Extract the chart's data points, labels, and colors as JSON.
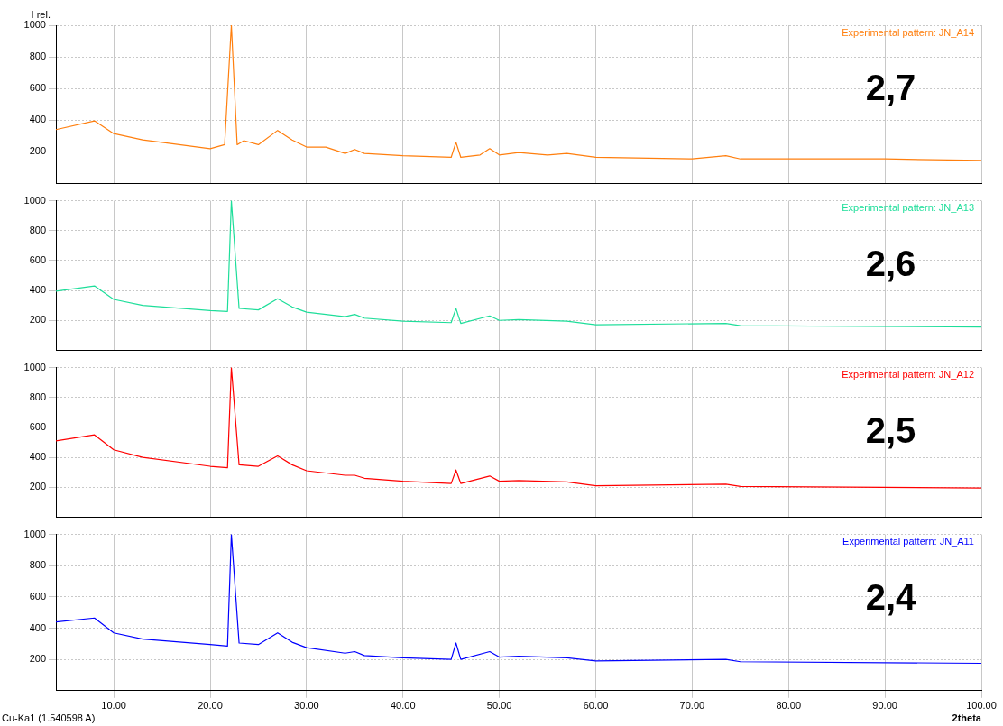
{
  "chart_data": [
    {
      "type": "line",
      "ylabel": "I rel.",
      "annotations": [
        "2,7"
      ],
      "xlim": [
        4,
        100
      ],
      "xticks": [
        10,
        20,
        30,
        40,
        50,
        60,
        70,
        80,
        90,
        100
      ],
      "ylim": [
        0,
        1000
      ],
      "yticks": [
        200,
        400,
        600,
        800,
        1000
      ],
      "grid": true,
      "tick_labels": "y",
      "marker": "none",
      "x": [
        4,
        8,
        10,
        13,
        15,
        20,
        21.5,
        22.2,
        22.8,
        23.5,
        25,
        27,
        28.5,
        30,
        32,
        34,
        35,
        36,
        40,
        45,
        45.5,
        46,
        48,
        49,
        50,
        52,
        55,
        57,
        60,
        70,
        73.5,
        75,
        90,
        100
      ],
      "series": [
        {
          "name": "Experimental pattern: JN_A14",
          "color": "#ff7f0e",
          "values": [
            340,
            395,
            315,
            275,
            260,
            220,
            245,
            1000,
            245,
            270,
            245,
            335,
            275,
            230,
            230,
            190,
            215,
            190,
            175,
            165,
            260,
            165,
            180,
            220,
            180,
            195,
            180,
            190,
            165,
            155,
            175,
            155,
            155,
            145
          ]
        }
      ]
    },
    {
      "type": "line",
      "annotations": [
        "2,6"
      ],
      "xlim": [
        4,
        100
      ],
      "xticks": [
        10,
        20,
        30,
        40,
        50,
        60,
        70,
        80,
        90,
        100
      ],
      "ylim": [
        0,
        1000
      ],
      "yticks": [
        200,
        400,
        600,
        800,
        1000
      ],
      "grid": true,
      "tick_labels": "y",
      "marker": "none",
      "x": [
        4,
        8,
        10,
        13,
        20,
        21.8,
        22.2,
        23,
        25,
        27,
        28.5,
        30,
        34,
        35,
        36,
        40,
        45,
        45.5,
        46,
        49,
        50,
        52,
        57,
        60,
        73.5,
        75,
        100
      ],
      "series": [
        {
          "name": "Experimental pattern: JN_A13",
          "color": "#1ede9a",
          "values": [
            395,
            430,
            340,
            300,
            265,
            260,
            1000,
            280,
            270,
            345,
            290,
            255,
            225,
            240,
            215,
            195,
            185,
            280,
            180,
            230,
            200,
            205,
            195,
            170,
            180,
            165,
            155
          ]
        }
      ]
    },
    {
      "type": "line",
      "annotations": [
        "2,5"
      ],
      "xlim": [
        4,
        100
      ],
      "xticks": [
        10,
        20,
        30,
        40,
        50,
        60,
        70,
        80,
        90,
        100
      ],
      "ylim": [
        0,
        1000
      ],
      "yticks": [
        200,
        400,
        600,
        800,
        1000
      ],
      "grid": true,
      "tick_labels": "y",
      "marker": "none",
      "x": [
        4,
        8,
        10,
        13,
        20,
        21.8,
        22.2,
        23,
        25,
        27,
        28.5,
        30,
        34,
        35,
        36,
        40,
        45,
        45.5,
        46,
        49,
        50,
        52,
        57,
        60,
        73.5,
        75,
        100
      ],
      "series": [
        {
          "name": "Experimental pattern: JN_A12",
          "color": "#ff0000",
          "values": [
            510,
            550,
            450,
            400,
            340,
            330,
            1000,
            350,
            340,
            410,
            350,
            310,
            280,
            280,
            260,
            240,
            225,
            315,
            225,
            275,
            240,
            245,
            235,
            210,
            220,
            205,
            195
          ]
        }
      ]
    },
    {
      "type": "line",
      "xlabel": "2theta",
      "annotations": [
        "2,4",
        "Cu-Ka1 (1.540598 A)"
      ],
      "xlim": [
        4,
        100
      ],
      "xticks": [
        {
          "value": 10,
          "label": "10.00"
        },
        {
          "value": 20,
          "label": "20.00"
        },
        {
          "value": 30,
          "label": "30.00"
        },
        {
          "value": 40,
          "label": "40.00"
        },
        {
          "value": 50,
          "label": "50.00"
        },
        {
          "value": 60,
          "label": "60.00"
        },
        {
          "value": 70,
          "label": "70.00"
        },
        {
          "value": 80,
          "label": "80.00"
        },
        {
          "value": 90,
          "label": "90.00"
        },
        {
          "value": 100,
          "label": "100.00"
        }
      ],
      "ylim": [
        0,
        1000
      ],
      "yticks": [
        200,
        400,
        600,
        800,
        1000
      ],
      "grid": true,
      "marker": "none",
      "x": [
        4,
        8,
        10,
        13,
        20,
        21.8,
        22.2,
        23,
        25,
        27,
        28.5,
        30,
        34,
        35,
        36,
        40,
        45,
        45.5,
        46,
        49,
        50,
        52,
        57,
        60,
        73.5,
        75,
        100
      ],
      "series": [
        {
          "name": "Experimental pattern: JN_A11",
          "color": "#0000ff",
          "values": [
            440,
            465,
            370,
            330,
            295,
            285,
            1000,
            305,
            295,
            370,
            310,
            275,
            240,
            250,
            225,
            210,
            200,
            305,
            200,
            250,
            215,
            220,
            210,
            190,
            200,
            185,
            175
          ]
        }
      ]
    }
  ]
}
